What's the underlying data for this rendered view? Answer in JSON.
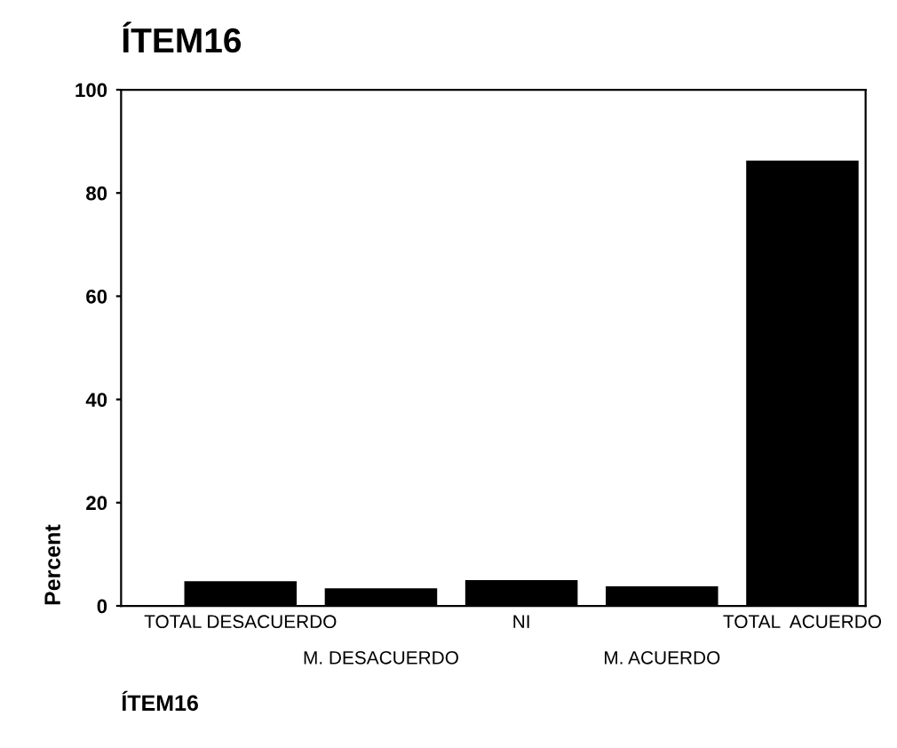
{
  "chart_data": {
    "type": "bar",
    "title": "ÍTEM16",
    "ylabel": "Percent",
    "categories": [
      "TOTAL DESACUERDO",
      "M. DESACUERDO",
      "NI",
      "M. ACUERDO",
      "TOTAL  ACUERDO"
    ],
    "values": [
      4.8,
      3.4,
      5.0,
      3.8,
      86.3
    ],
    "color": "#000000",
    "ylim": [
      0,
      100
    ],
    "yticks": [
      0,
      20,
      40,
      60,
      80,
      100
    ],
    "grid": false,
    "annotations": [
      "ÍTEM16"
    ]
  }
}
